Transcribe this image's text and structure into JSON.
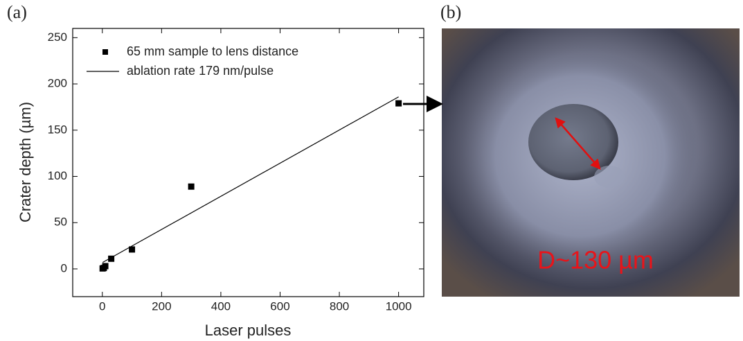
{
  "chart_data": {
    "type": "scatter",
    "panel_label": "(a)",
    "x_label": "Laser pulses",
    "y_label": "Crater depth (µm)",
    "xlim": [
      -100,
      1085
    ],
    "ylim": [
      -30,
      260
    ],
    "xticks": [
      0,
      200,
      400,
      600,
      800,
      1000
    ],
    "yticks": [
      0,
      50,
      100,
      150,
      200,
      250
    ],
    "series": [
      {
        "name": "65 mm sample to lens distance",
        "style": "marker",
        "color": "#000000",
        "x": [
          1,
          5,
          10,
          30,
          100,
          300,
          1000
        ],
        "values": [
          0.5,
          1,
          3,
          11,
          21,
          89,
          179
        ]
      },
      {
        "name": "ablation rate 179 nm/pulse",
        "style": "line",
        "color": "#000000",
        "x": [
          1,
          1000
        ],
        "values": [
          7,
          186
        ]
      }
    ]
  },
  "image_panel": {
    "panel_label": "(b)",
    "annotation": "D~130 µm"
  }
}
